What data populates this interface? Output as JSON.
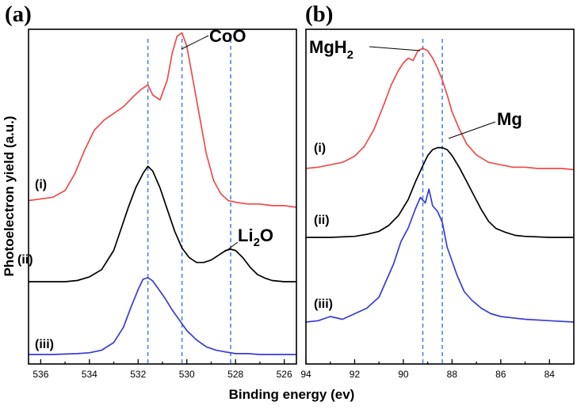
{
  "chart_data": [
    {
      "panel_label": "(a)",
      "type": "line",
      "xlabel": "Binding energy (ev)",
      "ylabel": "Photoelectron yield (a.u.)",
      "xlim": [
        536.5,
        525.5
      ],
      "x_reversed": true,
      "xticks": [
        536,
        534,
        532,
        530,
        528,
        526
      ],
      "y_ticks_shown": false,
      "reference_lines": [
        {
          "x": 531.6,
          "color": "#4a86e8"
        },
        {
          "x": 530.2,
          "color": "#4a86e8"
        },
        {
          "x": 528.2,
          "color": "#4a86e8"
        }
      ],
      "series": [
        {
          "name": "(i)",
          "color": "#f04a4a",
          "x": [
            536.5,
            535.5,
            535.0,
            534.6,
            534.2,
            533.8,
            533.4,
            533.0,
            532.6,
            532.2,
            531.9,
            531.6,
            531.4,
            531.1,
            530.8,
            530.6,
            530.4,
            530.2,
            530.0,
            529.8,
            529.5,
            529.2,
            528.9,
            528.6,
            528.3,
            528.0,
            527.5,
            527.0,
            526.5,
            526.0,
            525.5
          ],
          "y": [
            0.04,
            0.06,
            0.1,
            0.2,
            0.34,
            0.46,
            0.52,
            0.56,
            0.6,
            0.66,
            0.7,
            0.73,
            0.67,
            0.64,
            0.76,
            0.92,
            1.02,
            1.04,
            0.96,
            0.8,
            0.56,
            0.32,
            0.16,
            0.08,
            0.04,
            0.03,
            0.02,
            0.02,
            0.01,
            0.01,
            0.0
          ]
        },
        {
          "name": "(ii)",
          "color": "#000000",
          "x": [
            536.5,
            536.0,
            535.5,
            535.0,
            534.5,
            534.0,
            533.5,
            533.0,
            532.7,
            532.4,
            532.1,
            531.8,
            531.6,
            531.4,
            531.1,
            530.8,
            530.5,
            530.2,
            529.9,
            529.6,
            529.3,
            529.0,
            528.7,
            528.4,
            528.2,
            528.0,
            527.7,
            527.4,
            527.1,
            526.8,
            526.5,
            526.0,
            525.5
          ],
          "y": [
            0.0,
            0.0,
            0.0,
            0.0,
            0.01,
            0.04,
            0.1,
            0.26,
            0.44,
            0.62,
            0.78,
            0.9,
            0.96,
            0.92,
            0.78,
            0.6,
            0.42,
            0.28,
            0.2,
            0.16,
            0.16,
            0.18,
            0.22,
            0.26,
            0.27,
            0.26,
            0.2,
            0.12,
            0.06,
            0.03,
            0.01,
            0.0,
            0.0
          ]
        },
        {
          "name": "(iii)",
          "color": "#3a3ad8",
          "x": [
            536.5,
            535.5,
            534.5,
            534.0,
            533.5,
            533.0,
            532.6,
            532.3,
            532.0,
            531.8,
            531.6,
            531.4,
            531.2,
            530.9,
            530.6,
            530.3,
            530.0,
            529.6,
            529.2,
            528.8,
            528.4,
            528.0,
            527.5,
            527.0,
            526.5,
            526.0,
            525.5
          ],
          "y": [
            0.0,
            0.0,
            0.01,
            0.02,
            0.05,
            0.14,
            0.32,
            0.55,
            0.76,
            0.88,
            0.9,
            0.86,
            0.78,
            0.66,
            0.52,
            0.4,
            0.28,
            0.17,
            0.09,
            0.05,
            0.03,
            0.01,
            0.01,
            0.0,
            0.0,
            0.0,
            0.0
          ]
        }
      ],
      "annotations": [
        {
          "id": "coo",
          "main": "CoO",
          "sub": ""
        },
        {
          "id": "li2o",
          "main": "Li",
          "sub": "2",
          "tail": "O"
        }
      ],
      "series_labels": [
        "(i)",
        "(ii)",
        "(iii)"
      ]
    },
    {
      "panel_label": "(b)",
      "type": "line",
      "xlabel": "Binding energy (ev)",
      "xlim": [
        94,
        83
      ],
      "x_reversed": true,
      "xticks": [
        94,
        92,
        90,
        88,
        86,
        84
      ],
      "y_ticks_shown": false,
      "reference_lines": [
        {
          "x": 89.2,
          "color": "#4a86e8"
        },
        {
          "x": 88.4,
          "color": "#4a86e8"
        }
      ],
      "series": [
        {
          "name": "(i)",
          "color": "#f04a4a",
          "x": [
            94.0,
            93.5,
            93.0,
            92.5,
            92.0,
            91.6,
            91.2,
            90.8,
            90.5,
            90.2,
            90.0,
            89.8,
            89.6,
            89.4,
            89.2,
            89.0,
            88.8,
            88.6,
            88.4,
            88.2,
            88.0,
            87.7,
            87.4,
            87.0,
            86.5,
            86.0,
            85.5,
            85.0,
            84.5,
            84.0,
            83.5,
            83.0
          ],
          "y": [
            0.02,
            0.03,
            0.05,
            0.07,
            0.12,
            0.2,
            0.34,
            0.54,
            0.7,
            0.82,
            0.88,
            0.92,
            0.9,
            0.98,
            1.0,
            0.98,
            0.92,
            0.84,
            0.74,
            0.62,
            0.48,
            0.34,
            0.22,
            0.13,
            0.07,
            0.05,
            0.03,
            0.03,
            0.02,
            0.02,
            0.02,
            0.01
          ]
        },
        {
          "name": "(ii)",
          "color": "#000000",
          "x": [
            94.0,
            93.0,
            92.0,
            91.5,
            91.0,
            90.6,
            90.2,
            89.8,
            89.5,
            89.2,
            89.0,
            88.8,
            88.6,
            88.4,
            88.2,
            88.0,
            87.7,
            87.4,
            87.1,
            86.8,
            86.5,
            86.2,
            85.8,
            85.4,
            85.0,
            84.0,
            83.0
          ],
          "y": [
            0.0,
            0.0,
            0.01,
            0.03,
            0.06,
            0.12,
            0.22,
            0.38,
            0.56,
            0.72,
            0.82,
            0.88,
            0.9,
            0.9,
            0.88,
            0.82,
            0.7,
            0.56,
            0.42,
            0.28,
            0.16,
            0.09,
            0.05,
            0.02,
            0.01,
            0.0,
            0.0
          ]
        },
        {
          "name": "(iii)",
          "color": "#3a3ad8",
          "x": [
            94.0,
            93.5,
            93.0,
            92.5,
            92.0,
            91.5,
            91.0,
            90.7,
            90.4,
            90.1,
            89.8,
            89.5,
            89.3,
            89.1,
            88.95,
            88.8,
            88.6,
            88.4,
            88.2,
            88.0,
            87.8,
            87.5,
            87.2,
            86.8,
            86.4,
            86.0,
            85.5,
            85.0,
            84.0,
            83.0
          ],
          "y": [
            0.04,
            0.05,
            0.08,
            0.06,
            0.1,
            0.14,
            0.22,
            0.34,
            0.46,
            0.62,
            0.72,
            0.86,
            0.94,
            0.9,
            1.0,
            0.88,
            0.84,
            0.76,
            0.58,
            0.48,
            0.38,
            0.26,
            0.2,
            0.14,
            0.1,
            0.08,
            0.07,
            0.06,
            0.05,
            0.04
          ]
        }
      ],
      "annotations": [
        {
          "id": "mgh2",
          "main": "MgH",
          "sub": "2"
        },
        {
          "id": "mg",
          "main": "Mg",
          "sub": ""
        }
      ],
      "series_labels": [
        "(i)",
        "(ii)",
        "(iii)"
      ]
    }
  ]
}
